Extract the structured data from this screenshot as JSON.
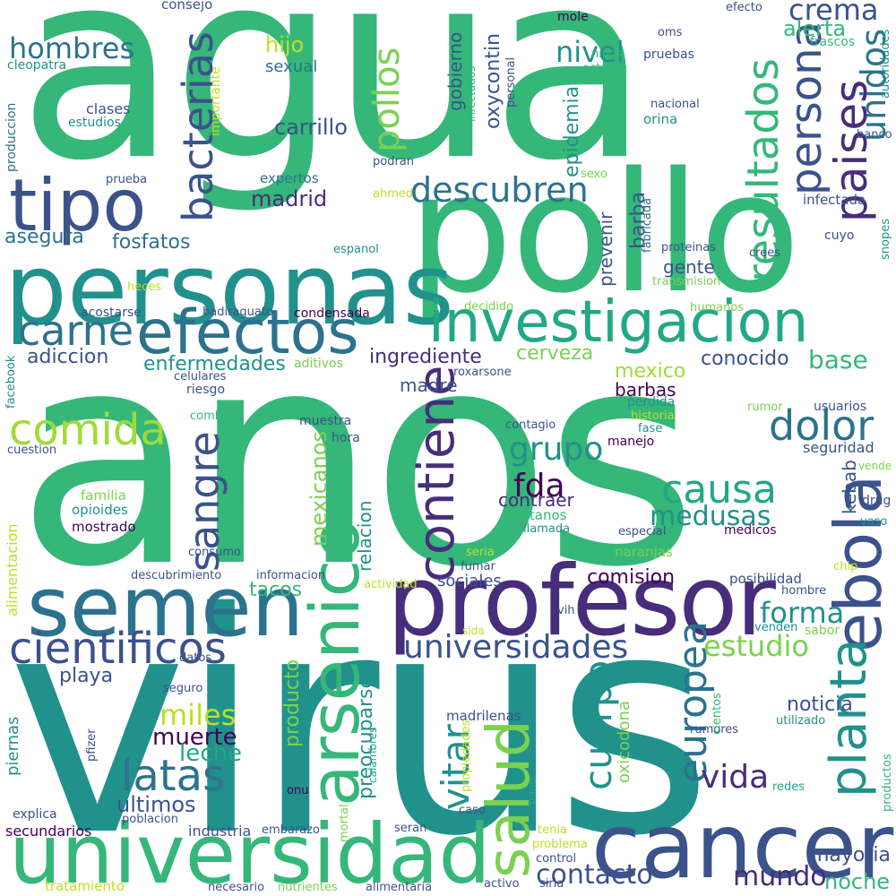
{
  "palette": {
    "background": "#ffffff",
    "yellow": "#bddf26",
    "lightgreen": "#7ad151",
    "green": "#35b779",
    "teal": "#21918c",
    "blue": "#2c728e",
    "navy": "#3b528b",
    "purple": "#472d7b",
    "darkpurple": "#440154",
    "mint": "#22a884",
    "lime": "#a0da39"
  },
  "words": [
    {
      "text": "agua",
      "color": "#35b779"
    },
    {
      "text": "anos",
      "color": "#35b779"
    },
    {
      "text": "virus",
      "color": "#21918c"
    },
    {
      "text": "pollo",
      "color": "#35b779"
    },
    {
      "text": "personas",
      "color": "#21918c"
    },
    {
      "text": "tipo",
      "color": "#3b528b"
    },
    {
      "text": "profesor",
      "color": "#472d7b"
    },
    {
      "text": "cancer",
      "color": "#3b528b"
    },
    {
      "text": "universidad",
      "color": "#35b779"
    },
    {
      "text": "semen",
      "color": "#2c728e"
    },
    {
      "text": "arsenico",
      "color": "#35b779"
    },
    {
      "text": "investigacion",
      "color": "#22a884"
    },
    {
      "text": "efectos",
      "color": "#2c728e"
    },
    {
      "text": "ebola",
      "color": "#3b528b"
    },
    {
      "text": "salud",
      "color": "#7ad151"
    },
    {
      "text": "bacterias",
      "color": "#3b528b"
    },
    {
      "text": "resultados",
      "color": "#35b779"
    },
    {
      "text": "persona",
      "color": "#3b528b"
    },
    {
      "text": "paises",
      "color": "#472d7b"
    },
    {
      "text": "unidos",
      "color": "#2c728e"
    },
    {
      "text": "cientificos",
      "color": "#3b528b"
    },
    {
      "text": "comida",
      "color": "#a0da39"
    },
    {
      "text": "carne",
      "color": "#2c728e"
    },
    {
      "text": "contiene",
      "color": "#472d7b"
    },
    {
      "text": "descubren",
      "color": "#2c728e"
    },
    {
      "text": "dolor",
      "color": "#2c728e"
    },
    {
      "text": "causa",
      "color": "#22a884"
    },
    {
      "text": "sangre",
      "color": "#3b528b"
    },
    {
      "text": "pollos",
      "color": "#7ad151"
    },
    {
      "text": "universidades",
      "color": "#3b528b"
    },
    {
      "text": "latas",
      "color": "#2c728e"
    },
    {
      "text": "planta",
      "color": "#21918c"
    },
    {
      "text": "europea",
      "color": "#2c728e"
    },
    {
      "text": "cuerpo",
      "color": "#21918c"
    },
    {
      "text": "evitar",
      "color": "#21918c"
    },
    {
      "text": "medusas",
      "color": "#21918c"
    },
    {
      "text": "hombres",
      "color": "#2c728e"
    },
    {
      "text": "crema",
      "color": "#3b528b"
    },
    {
      "text": "grupo",
      "color": "#21918c"
    },
    {
      "text": "fda",
      "color": "#440154"
    },
    {
      "text": "mundo",
      "color": "#472d7b"
    },
    {
      "text": "contacto",
      "color": "#3b528b"
    },
    {
      "text": "vida",
      "color": "#472d7b"
    },
    {
      "text": "estudio",
      "color": "#7ad151"
    },
    {
      "text": "forma",
      "color": "#21918c"
    },
    {
      "text": "miles",
      "color": "#bddf26"
    },
    {
      "text": "muerte",
      "color": "#440154"
    },
    {
      "text": "leche",
      "color": "#22a884"
    },
    {
      "text": "ultimos",
      "color": "#3b528b"
    },
    {
      "text": "mayoria",
      "color": "#3b528b"
    },
    {
      "text": "noche",
      "color": "#35b779"
    },
    {
      "text": "autonoma",
      "color": "#35b779"
    },
    {
      "text": "mexicanos",
      "color": "#7ad151"
    },
    {
      "text": "nivel",
      "color": "#21918c"
    },
    {
      "text": "alerta",
      "color": "#35b779"
    },
    {
      "text": "base",
      "color": "#35b779"
    },
    {
      "text": "conocido",
      "color": "#3b528b"
    },
    {
      "text": "cerveza",
      "color": "#7ad151"
    },
    {
      "text": "ingrediente",
      "color": "#472d7b"
    },
    {
      "text": "adiccion",
      "color": "#3b528b"
    },
    {
      "text": "enfermedades",
      "color": "#21918c"
    },
    {
      "text": "asegura",
      "color": "#2c728e"
    },
    {
      "text": "fosfatos",
      "color": "#2c728e"
    },
    {
      "text": "madrid",
      "color": "#472d7b"
    },
    {
      "text": "carrillo",
      "color": "#3b528b"
    },
    {
      "text": "hijo",
      "color": "#bddf26"
    },
    {
      "text": "sexual",
      "color": "#2c728e"
    },
    {
      "text": "epidemia",
      "color": "#21918c"
    },
    {
      "text": "oxycontin",
      "color": "#3b528b"
    },
    {
      "text": "gobierno",
      "color": "#3b528b"
    },
    {
      "text": "barba",
      "color": "#3b528b"
    },
    {
      "text": "prevenir",
      "color": "#3b528b"
    },
    {
      "text": "gente",
      "color": "#3b528b"
    },
    {
      "text": "comision",
      "color": "#440154"
    },
    {
      "text": "tacos",
      "color": "#35b779"
    },
    {
      "text": "playa",
      "color": "#3b528b"
    },
    {
      "text": "producto",
      "color": "#7ad151"
    },
    {
      "text": "preocuparse",
      "color": "#21918c"
    },
    {
      "text": "oxicodona",
      "color": "#7ad151"
    },
    {
      "text": "noticia",
      "color": "#3b528b"
    },
    {
      "text": "kebab",
      "color": "#3b528b"
    },
    {
      "text": "contraer",
      "color": "#472d7b"
    },
    {
      "text": "relacion",
      "color": "#21918c"
    },
    {
      "text": "barbas",
      "color": "#440154"
    },
    {
      "text": "mexico",
      "color": "#a0da39"
    },
    {
      "text": "madre",
      "color": "#3b528b"
    },
    {
      "text": "sociales",
      "color": "#3b528b"
    },
    {
      "text": "consejo",
      "color": "#3b528b"
    },
    {
      "text": "cleopatra",
      "color": "#21918c"
    },
    {
      "text": "produccion",
      "color": "#2c728e"
    },
    {
      "text": "clases",
      "color": "#3b528b"
    },
    {
      "text": "estudios",
      "color": "#21918c"
    },
    {
      "text": "importante",
      "color": "#bddf26"
    },
    {
      "text": "prueba",
      "color": "#3b528b"
    },
    {
      "text": "expertos",
      "color": "#2c728e"
    },
    {
      "text": "podran",
      "color": "#3b528b"
    },
    {
      "text": "ahmed",
      "color": "#bddf26"
    },
    {
      "text": "sexo",
      "color": "#7ad151"
    },
    {
      "text": "fabricada",
      "color": "#2c728e"
    },
    {
      "text": "infectada",
      "color": "#3b528b"
    },
    {
      "text": "cuyo",
      "color": "#3b528b"
    },
    {
      "text": "snopes",
      "color": "#21918c"
    },
    {
      "text": "crees",
      "color": "#3b528b"
    },
    {
      "text": "proteinas",
      "color": "#3b528b"
    },
    {
      "text": "transmision",
      "color": "#7ad151"
    },
    {
      "text": "espanol",
      "color": "#21918c"
    },
    {
      "text": "heces",
      "color": "#bddf26"
    },
    {
      "text": "decidido",
      "color": "#7ad151"
    },
    {
      "text": "humanos",
      "color": "#7ad151"
    },
    {
      "text": "acostarse",
      "color": "#3b528b"
    },
    {
      "text": "badiraguato",
      "color": "#3b528b"
    },
    {
      "text": "condensada",
      "color": "#440154"
    },
    {
      "text": "aditivos",
      "color": "#7ad151"
    },
    {
      "text": "roxarsone",
      "color": "#3b528b"
    },
    {
      "text": "celulares",
      "color": "#3b528b"
    },
    {
      "text": "riesgo",
      "color": "#3b528b"
    },
    {
      "text": "facebook",
      "color": "#21918c"
    },
    {
      "text": "cuestion",
      "color": "#3b528b"
    },
    {
      "text": "alimentacion",
      "color": "#bddf26"
    },
    {
      "text": "combatir",
      "color": "#35b779"
    },
    {
      "text": "muestra",
      "color": "#3b528b"
    },
    {
      "text": "hora",
      "color": "#3b528b"
    },
    {
      "text": "contagio",
      "color": "#3b528b"
    },
    {
      "text": "manejo",
      "color": "#440154"
    },
    {
      "text": "perdida",
      "color": "#21918c"
    },
    {
      "text": "historia",
      "color": "#bddf26"
    },
    {
      "text": "fase",
      "color": "#21918c"
    },
    {
      "text": "rumor",
      "color": "#7ad151"
    },
    {
      "text": "usuarios",
      "color": "#3b528b"
    },
    {
      "text": "seguridad",
      "color": "#3b528b"
    },
    {
      "text": "vende",
      "color": "#7ad151"
    },
    {
      "text": "drug",
      "color": "#3b528b"
    },
    {
      "text": "vaso",
      "color": "#21918c"
    },
    {
      "text": "medicos",
      "color": "#440154"
    },
    {
      "text": "especial",
      "color": "#3b528b"
    },
    {
      "text": "chip",
      "color": "#bddf26"
    },
    {
      "text": "posibilidad",
      "color": "#3b528b"
    },
    {
      "text": "hombre",
      "color": "#3b528b"
    },
    {
      "text": "vih",
      "color": "#3b528b"
    },
    {
      "text": "venden",
      "color": "#21918c"
    },
    {
      "text": "sabor",
      "color": "#7ad151"
    },
    {
      "text": "utilizado",
      "color": "#21918c"
    },
    {
      "text": "rumores",
      "color": "#3b528b"
    },
    {
      "text": "cientos",
      "color": "#35b779"
    },
    {
      "text": "productos",
      "color": "#35b779"
    },
    {
      "text": "redes",
      "color": "#22a884"
    },
    {
      "text": "familia",
      "color": "#7ad151"
    },
    {
      "text": "opioides",
      "color": "#21918c"
    },
    {
      "text": "mostrado",
      "color": "#440154"
    },
    {
      "text": "consumo",
      "color": "#3b528b"
    },
    {
      "text": "platanos",
      "color": "#35b779"
    },
    {
      "text": "llamada",
      "color": "#21918c"
    },
    {
      "text": "naranjas",
      "color": "#7ad151"
    },
    {
      "text": "seria",
      "color": "#bddf26"
    },
    {
      "text": "fumar",
      "color": "#3b528b"
    },
    {
      "text": "descubrimiento",
      "color": "#3b528b"
    },
    {
      "text": "informacion",
      "color": "#3b528b"
    },
    {
      "text": "actividad",
      "color": "#bddf26"
    },
    {
      "text": "sida",
      "color": "#bddf26"
    },
    {
      "text": "datos",
      "color": "#3b528b"
    },
    {
      "text": "seguro",
      "color": "#3b528b"
    },
    {
      "text": "pfizer",
      "color": "#3b528b"
    },
    {
      "text": "piernas",
      "color": "#21918c"
    },
    {
      "text": "explica",
      "color": "#3b528b"
    },
    {
      "text": "secundarios",
      "color": "#440154"
    },
    {
      "text": "poblacion",
      "color": "#3b528b"
    },
    {
      "text": "industria",
      "color": "#3b528b"
    },
    {
      "text": "embarazo",
      "color": "#3b528b"
    },
    {
      "text": "mortal",
      "color": "#7ad151"
    },
    {
      "text": "calambres",
      "color": "#22a884"
    },
    {
      "text": "onu",
      "color": "#440154"
    },
    {
      "text": "madrilenas",
      "color": "#3b528b"
    },
    {
      "text": "propiedades",
      "color": "#bddf26"
    },
    {
      "text": "caso",
      "color": "#3b528b"
    },
    {
      "text": "bano",
      "color": "#22a884"
    },
    {
      "text": "seran",
      "color": "#3b528b"
    },
    {
      "text": "tenia",
      "color": "#bddf26"
    },
    {
      "text": "problema",
      "color": "#bddf26"
    },
    {
      "text": "control",
      "color": "#3b528b"
    },
    {
      "text": "siria",
      "color": "#3b528b"
    },
    {
      "text": "activo",
      "color": "#3b528b"
    },
    {
      "text": "tratamiento",
      "color": "#bddf26"
    },
    {
      "text": "necesario",
      "color": "#3b528b"
    },
    {
      "text": "nutrientes",
      "color": "#7ad151"
    },
    {
      "text": "alimentaria",
      "color": "#3b528b"
    },
    {
      "text": "efecto",
      "color": "#3b528b"
    },
    {
      "text": "frascos",
      "color": "#35b779"
    },
    {
      "text": "autoridades",
      "color": "#21918c"
    },
    {
      "text": "banco",
      "color": "#3b528b"
    },
    {
      "text": "oms",
      "color": "#3b528b"
    },
    {
      "text": "mole",
      "color": "#440154"
    },
    {
      "text": "ninos",
      "color": "#35b779"
    },
    {
      "text": "octubre",
      "color": "#35b779"
    },
    {
      "text": "pruebas",
      "color": "#3b528b"
    },
    {
      "text": "infectados",
      "color": "#35b779"
    },
    {
      "text": "personal",
      "color": "#3b528b"
    },
    {
      "text": "nacional",
      "color": "#3b528b"
    },
    {
      "text": "orina",
      "color": "#21918c"
    }
  ]
}
